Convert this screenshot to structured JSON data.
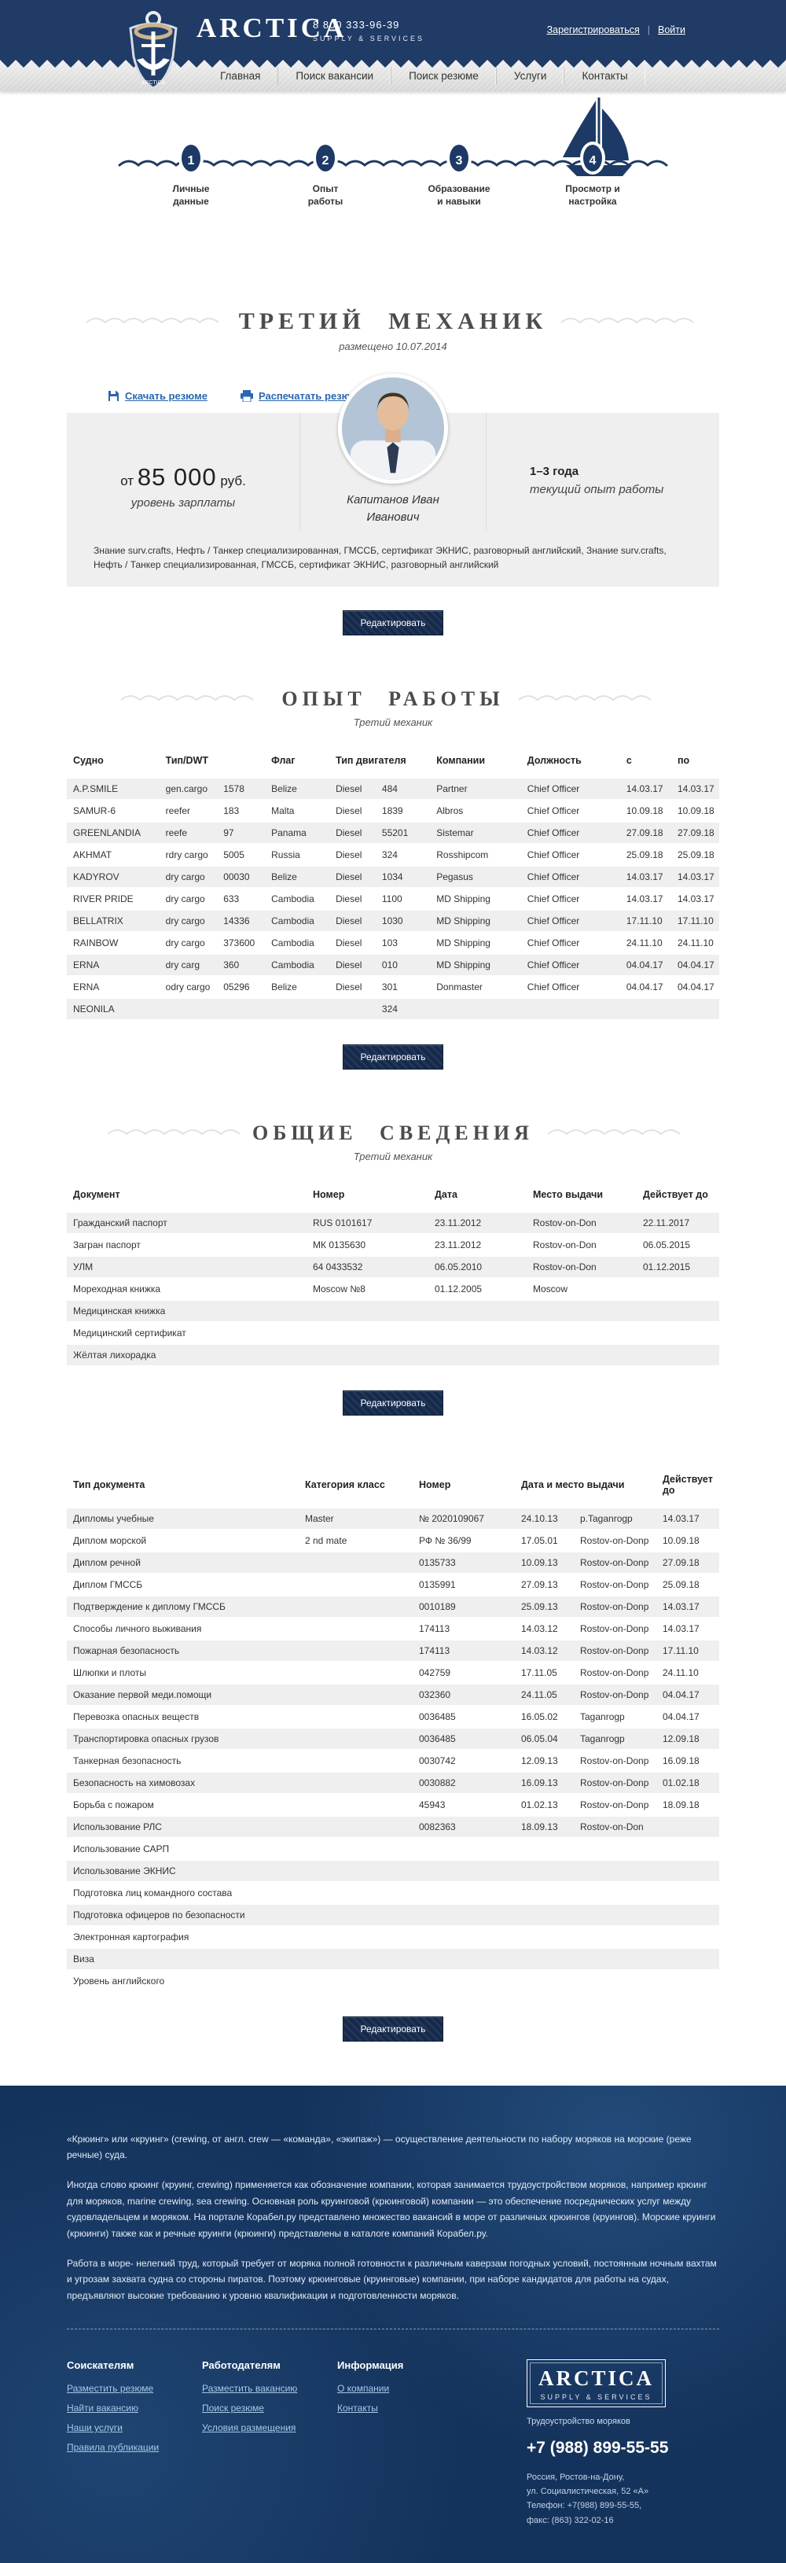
{
  "header": {
    "brand": "Arctica",
    "brand_sub": "Supply & Services",
    "phone": "8 800 333-96-39",
    "register_link": "Зарегистрироваться",
    "login_link": "Войти"
  },
  "nav": {
    "items": [
      "Главная",
      "Поиск вакансии",
      "Поиск резюме",
      "Услуги",
      "Контакты"
    ]
  },
  "steps": {
    "items": [
      {
        "num": "1",
        "line1": "Личные",
        "line2": "данные"
      },
      {
        "num": "2",
        "line1": "Опыт",
        "line2": "работы"
      },
      {
        "num": "3",
        "line1": "Образование",
        "line2": "и навыки"
      },
      {
        "num": "4",
        "line1": "Просмотр и",
        "line2": "настройка"
      }
    ]
  },
  "ui": {
    "edit_label": "Редактировать"
  },
  "resume": {
    "title": "Третий механик",
    "posted": "размещено 10.07.2014",
    "download_link": "Скачать резюме",
    "print_link": "Распечатать резюме",
    "salary_prefix": "от",
    "salary": "85 000",
    "salary_unit": "руб.",
    "salary_label": "уровень зарплаты",
    "experience": "1–3 года",
    "experience_label": "текущий опыт работы",
    "name_line1": "Капитанов Иван",
    "name_line2": "Иванович",
    "skills": "Знание surv.crafts, Нефть / Танкер специализированная, ГМССБ, сертификат ЭКНИС, разговорный английский, Знание surv.crafts, Нефть / Танкер специализированная, ГМССБ, сертификат ЭКНИС, разговорный английский"
  },
  "work": {
    "title": "Опыт работы",
    "subtitle": "Третий механик",
    "headers": {
      "ship": "Судно",
      "type_dwt": "Тип/DWT",
      "flag": "Флаг",
      "engine": "Тип двигателя",
      "company": "Компании",
      "position": "Должность",
      "from": "с",
      "to": "по"
    },
    "rows": [
      {
        "ship": "A.P.SMILE",
        "type": "gen.cargo",
        "dwt": "1578",
        "flag": "Belize",
        "engine": "Diesel",
        "power": "484",
        "company": "Partner",
        "position": "Chief Officer",
        "from": "14.03.17",
        "to": "14.03.17"
      },
      {
        "ship": "SAMUR-6",
        "type": "reefer",
        "dwt": "183",
        "flag": "Malta",
        "engine": "Diesel",
        "power": "1839",
        "company": "Albros",
        "position": "Chief Officer",
        "from": "10.09.18",
        "to": "10.09.18"
      },
      {
        "ship": "GREENLANDIA",
        "type": "reefe",
        "dwt": "97",
        "flag": "Panama",
        "engine": "Diesel",
        "power": "55201",
        "company": "Sistemar",
        "position": "Chief Officer",
        "from": "27.09.18",
        "to": "27.09.18"
      },
      {
        "ship": "AKHMAT",
        "type": "rdry cargo",
        "dwt": "5005",
        "flag": "Russia",
        "engine": "Diesel",
        "power": "324",
        "company": "Rosshipcom",
        "position": "Chief Officer",
        "from": "25.09.18",
        "to": "25.09.18"
      },
      {
        "ship": "KADYROV",
        "type": "dry cargo",
        "dwt": "00030",
        "flag": "Belize",
        "engine": "Diesel",
        "power": "1034",
        "company": "Pegasus",
        "position": "Chief Officer",
        "from": "14.03.17",
        "to": "14.03.17"
      },
      {
        "ship": "RIVER PRIDE",
        "type": "dry cargo",
        "dwt": "633",
        "flag": "Cambodia",
        "engine": "Diesel",
        "power": "1100",
        "company": "MD Shipping",
        "position": "Chief Officer",
        "from": "14.03.17",
        "to": "14.03.17"
      },
      {
        "ship": "BELLATRIX",
        "type": "dry cargo",
        "dwt": "14336",
        "flag": "Cambodia",
        "engine": "Diesel",
        "power": "1030",
        "company": "MD Shipping",
        "position": "Chief Officer",
        "from": "17.11.10",
        "to": "17.11.10"
      },
      {
        "ship": "RAINBOW",
        "type": "dry cargo",
        "dwt": "373600",
        "flag": "Cambodia",
        "engine": "Diesel",
        "power": "103",
        "company": "MD Shipping",
        "position": "Chief Officer",
        "from": "24.11.10",
        "to": "24.11.10"
      },
      {
        "ship": "ERNA",
        "type": "dry carg",
        "dwt": "360",
        "flag": "Cambodia",
        "engine": "Diesel",
        "power": "010",
        "company": "MD Shipping",
        "position": "Chief Officer",
        "from": "04.04.17",
        "to": "04.04.17"
      },
      {
        "ship": "ERNA",
        "type": "odry cargo",
        "dwt": "05296",
        "flag": "Belize",
        "engine": "Diesel",
        "power": "301",
        "company": "Donmaster",
        "position": "Chief Officer",
        "from": "04.04.17",
        "to": "04.04.17"
      },
      {
        "ship": "NEONILA",
        "type": "",
        "dwt": "",
        "flag": "",
        "engine": "",
        "power": "324",
        "company": "",
        "position": "",
        "from": "",
        "to": ""
      }
    ]
  },
  "general": {
    "title": "Общие сведения",
    "subtitle": "Третий механик",
    "headers": {
      "doc": "Документ",
      "number": "Номер",
      "date": "Дата",
      "place": "Место выдачи",
      "valid": "Действует до"
    },
    "rows": [
      {
        "doc": "Гражданский паспорт",
        "number": "RUS 0101617",
        "date": "23.11.2012",
        "place": "Rostov-on-Don",
        "valid": "22.11.2017"
      },
      {
        "doc": "Загран паспорт",
        "number": "МК 0135630",
        "date": "23.11.2012",
        "place": "Rostov-on-Don",
        "valid": "06.05.2015"
      },
      {
        "doc": "УЛМ",
        "number": "64 0433532",
        "date": "06.05.2010",
        "place": "Rostov-on-Don",
        "valid": "01.12.2015"
      },
      {
        "doc": "Мореходная книжка",
        "number": "Moscow №8",
        "date": "01.12.2005",
        "place": "Moscow",
        "valid": ""
      },
      {
        "doc": "Медицинская книжка",
        "number": "",
        "date": "",
        "place": "",
        "valid": ""
      },
      {
        "doc": "Медицинский сертификат",
        "number": "",
        "date": "",
        "place": "",
        "valid": ""
      },
      {
        "doc": "Жёлтая лихорадка",
        "number": "",
        "date": "",
        "place": "",
        "valid": ""
      }
    ]
  },
  "documents": {
    "headers": {
      "name": "Тип документа",
      "category": "Категория класс",
      "number": "Номер",
      "date_place": "Дата и место выдачи",
      "valid": "Действует до"
    },
    "rows": [
      {
        "name": "Дипломы учебные",
        "category": "Master",
        "number": "№ 2020109067",
        "date": "24.10.13",
        "place": "р.Taganrogp",
        "valid": "14.03.17"
      },
      {
        "name": "Диплом морской",
        "category": "2 nd mate",
        "number": "РФ № 36/99",
        "date": "17.05.01",
        "place": "Rostov-on-Donp",
        "valid": "10.09.18"
      },
      {
        "name": "Диплом речной",
        "category": "",
        "number": "0135733",
        "date": "10.09.13",
        "place": "Rostov-on-Donp",
        "valid": "27.09.18"
      },
      {
        "name": "Диплом ГМССБ",
        "category": "",
        "number": "0135991",
        "date": "27.09.13",
        "place": "Rostov-on-Donp",
        "valid": "25.09.18"
      },
      {
        "name": "Подтверждение к диплому ГМССБ",
        "category": "",
        "number": "0010189",
        "date": "25.09.13",
        "place": "Rostov-on-Donp",
        "valid": "14.03.17"
      },
      {
        "name": "Способы личного выживания",
        "category": "",
        "number": "174113",
        "date": "14.03.12",
        "place": "Rostov-on-Donp",
        "valid": "14.03.17"
      },
      {
        "name": "Пожарная безопасность",
        "category": "",
        "number": "174113",
        "date": "14.03.12",
        "place": "Rostov-on-Donp",
        "valid": "17.11.10"
      },
      {
        "name": "Шлюпки и плоты",
        "category": "",
        "number": "042759",
        "date": "17.11.05",
        "place": "Rostov-on-Donp",
        "valid": "24.11.10"
      },
      {
        "name": "Оказание первой меди.помощи",
        "category": "",
        "number": "032360",
        "date": "24.11.05",
        "place": "Rostov-on-Donp",
        "valid": "04.04.17"
      },
      {
        "name": "Перевозка опасных веществ",
        "category": "",
        "number": "0036485",
        "date": "16.05.02",
        "place": "Taganrogp",
        "valid": "04.04.17"
      },
      {
        "name": "Транспортировка опасных грузов",
        "category": "",
        "number": "0036485",
        "date": "06.05.04",
        "place": "Taganrogp",
        "valid": "12.09.18"
      },
      {
        "name": "Танкерная безопасность",
        "category": "",
        "number": "0030742",
        "date": "12.09.13",
        "place": "Rostov-on-Donp",
        "valid": "16.09.18"
      },
      {
        "name": "Безопасность на химовозах",
        "category": "",
        "number": "0030882",
        "date": "16.09.13",
        "place": "Rostov-on-Donp",
        "valid": "01.02.18"
      },
      {
        "name": "Борьба с пожаром",
        "category": "",
        "number": "45943",
        "date": "01.02.13",
        "place": "Rostov-on-Donp",
        "valid": "18.09.18"
      },
      {
        "name": "Использование РЛС",
        "category": "",
        "number": "0082363",
        "date": "18.09.13",
        "place": "Rostov-on-Don",
        "valid": ""
      },
      {
        "name": "Использование САРП",
        "category": "",
        "number": "",
        "date": "",
        "place": "",
        "valid": ""
      },
      {
        "name": "Использование ЭКНИС",
        "category": "",
        "number": "",
        "date": "",
        "place": "",
        "valid": ""
      },
      {
        "name": "Подготовка лиц командного состава",
        "category": "",
        "number": "",
        "date": "",
        "place": "",
        "valid": ""
      },
      {
        "name": "Подготовка офицеров по безопасности",
        "category": "",
        "number": "",
        "date": "",
        "place": "",
        "valid": ""
      },
      {
        "name": "Электронная картография",
        "category": "",
        "number": "",
        "date": "",
        "place": "",
        "valid": ""
      },
      {
        "name": "Виза",
        "category": "",
        "number": "",
        "date": "",
        "place": "",
        "valid": ""
      },
      {
        "name": "Уровень английского",
        "category": "",
        "number": "",
        "date": "",
        "place": "",
        "valid": ""
      }
    ]
  },
  "footer": {
    "paragraphs": [
      "«Крюинг» или «круинг» (crewing, от англ. crew — «команда», «экипаж») — осуществление деятельности по набору моряков на морские (реже речные) суда.",
      "Иногда слово крюинг (круинг, crewing) применяется как обозначение компании, которая занимается трудоустройством моряков, например крюинг для моряков, marine crewing, sea crewing. Основная роль круинговой (крюинговой) компании — это обеспечение посреднических услуг между судовладельцем и моряком. На портале Корабел.ру представлено множество вакансий в море от различных крюингов (круингов). Морские круинги (крюинги) также как и речные круинги (крюинги) представлены в каталоге компаний Корабел.ру.",
      "Работа в море- нелегкий труд, который требует от моряка полной готовности к различным каверзам погодных условий, постоянным ночным вахтам и угрозам захвата судна со стороны пиратов. Поэтому крюинговые (круинговые) компании, при наборе кандидатов для работы на судах, предъявляют высокие требованию к уровню квалификации и подготовленности моряков."
    ],
    "columns": [
      {
        "title": "Соискателям",
        "links": [
          "Разместить резюме",
          "Найти вакансию",
          "Наши услуги",
          "Правила публикации"
        ]
      },
      {
        "title": "Работодателям",
        "links": [
          "Разместить вакансию",
          "Поиск резюме",
          "Условия размещения"
        ]
      },
      {
        "title": "Информация",
        "links": [
          "О компании",
          "Контакты"
        ]
      }
    ],
    "contact": {
      "brand": "Arctica",
      "brand_sub": "Supply & Services",
      "tagline": "Трудоустройство моряков",
      "phone": "+7 (988) 899-55-55",
      "address_lines": [
        "Россия, Ростов-на-Дону,",
        "ул. Социалистическая, 52 «А»",
        "Телефон: +7(988) 899-55-55,",
        "факс: (863) 322-02-16"
      ]
    },
    "colors": {
      "navy": "#1f3b66",
      "footer_navy": "#14335c",
      "link_blue": "#2a67b1",
      "row_gray": "#efefef"
    }
  }
}
